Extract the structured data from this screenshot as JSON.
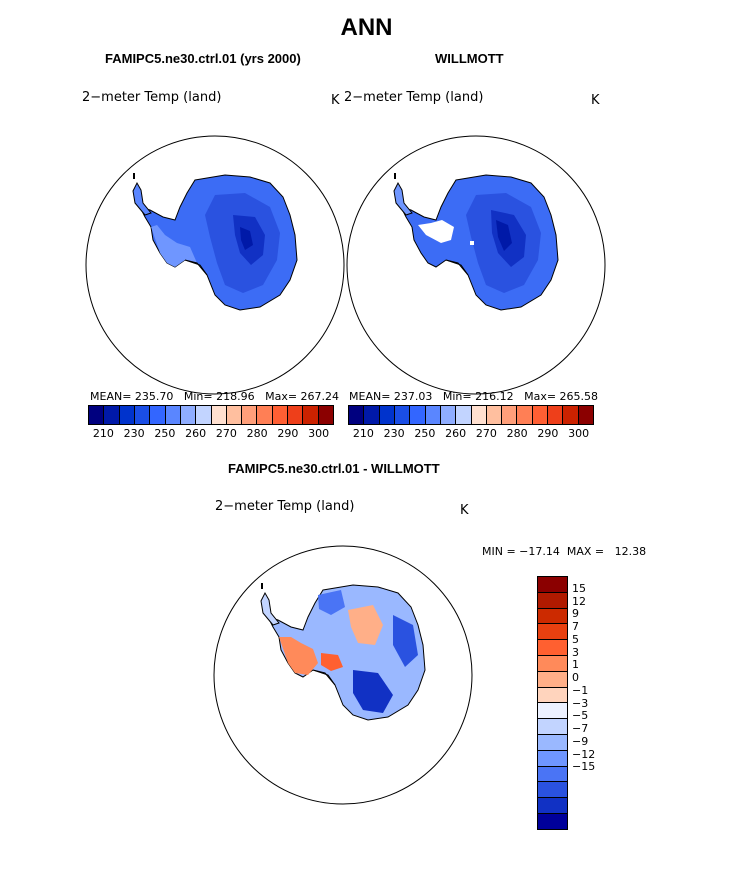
{
  "title": "ANN",
  "panels": {
    "model": {
      "title": "FAMIPC5.ne30.ctrl.01 (yrs 2000)",
      "variable": "2−meter Temp (land)",
      "units": "K",
      "stats": "MEAN= 235.70   Min= 218.96   Max= 267.24"
    },
    "obs": {
      "title": "WILLMOTT",
      "variable": "2−meter Temp (land)",
      "units": "K",
      "stats": "MEAN= 237.03   Min= 216.12   Max= 265.58"
    },
    "diff": {
      "title": "FAMIPC5.ne30.ctrl.01 - WILLMOTT",
      "variable": "2−meter Temp (land)",
      "units": "K",
      "stats": "MIN = −17.14  MAX =   12.38"
    }
  },
  "colorbar_abs": {
    "colors": [
      "#00007f",
      "#0019a8",
      "#0033cc",
      "#1a4ee6",
      "#3366ff",
      "#5a86ff",
      "#8fadff",
      "#c2d4ff",
      "#ffe0d0",
      "#ffbf9f",
      "#ff9f7a",
      "#ff7f55",
      "#ff5f33",
      "#ee3f1a",
      "#cc2200",
      "#8b0000"
    ],
    "labels": [
      "210",
      "230",
      "250",
      "260",
      "270",
      "280",
      "290",
      "300"
    ]
  },
  "colorbar_diff": {
    "colors": [
      "#8b0000",
      "#b01a00",
      "#cc2a00",
      "#e84010",
      "#ff6030",
      "#ff8a5a",
      "#ffaf88",
      "#ffd4bd",
      "#ecf1ff",
      "#c2d4ff",
      "#9ab8ff",
      "#6f96ff",
      "#4a74f5",
      "#2a52e0",
      "#1131c4",
      "#00009a"
    ],
    "labels": [
      "15",
      "12",
      "9",
      "7",
      "5",
      "3",
      "1",
      "0",
      "−1",
      "−3",
      "−5",
      "−7",
      "−9",
      "−12",
      "−15"
    ]
  }
}
